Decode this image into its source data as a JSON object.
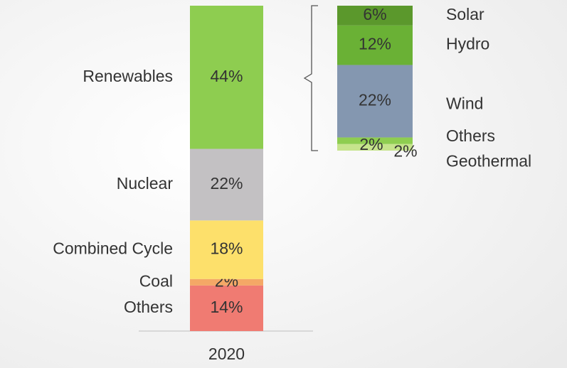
{
  "chart_data": [
    {
      "type": "bar",
      "stacked": true,
      "categories": [
        "2020"
      ],
      "ylim": [
        0,
        100
      ],
      "series": [
        {
          "name": "Others",
          "color": "#f07b72",
          "values": [
            14
          ],
          "value_labels": [
            "14%"
          ]
        },
        {
          "name": "Coal",
          "color": "#f4a866",
          "values": [
            2
          ],
          "value_labels": [
            "2%"
          ]
        },
        {
          "name": "Combined Cycle",
          "color": "#fde06b",
          "values": [
            18
          ],
          "value_labels": [
            "18%"
          ]
        },
        {
          "name": "Nuclear",
          "color": "#c3c1c3",
          "values": [
            22
          ],
          "value_labels": [
            "22%"
          ]
        },
        {
          "name": "Renewables",
          "color": "#8ecd50",
          "values": [
            44
          ],
          "value_labels": [
            "44%"
          ]
        }
      ]
    },
    {
      "type": "bar",
      "stacked": true,
      "categories": [
        null
      ],
      "ylim": [
        0,
        44
      ],
      "series": [
        {
          "name": "Geothermal",
          "color": "#c6e48c",
          "values": [
            2
          ],
          "value_labels": [
            "2%"
          ]
        },
        {
          "name": "Others",
          "color": "#8ecd50",
          "values": [
            2
          ],
          "value_labels": [
            "2%"
          ]
        },
        {
          "name": "Wind",
          "color": "#8497b0",
          "values": [
            22
          ],
          "value_labels": [
            "22%"
          ]
        },
        {
          "name": "Hydro",
          "color": "#6ab135",
          "values": [
            12
          ],
          "value_labels": [
            "12%"
          ]
        },
        {
          "name": "Solar",
          "color": "#5b982c",
          "values": [
            6
          ],
          "value_labels": [
            "6%"
          ]
        }
      ]
    }
  ]
}
